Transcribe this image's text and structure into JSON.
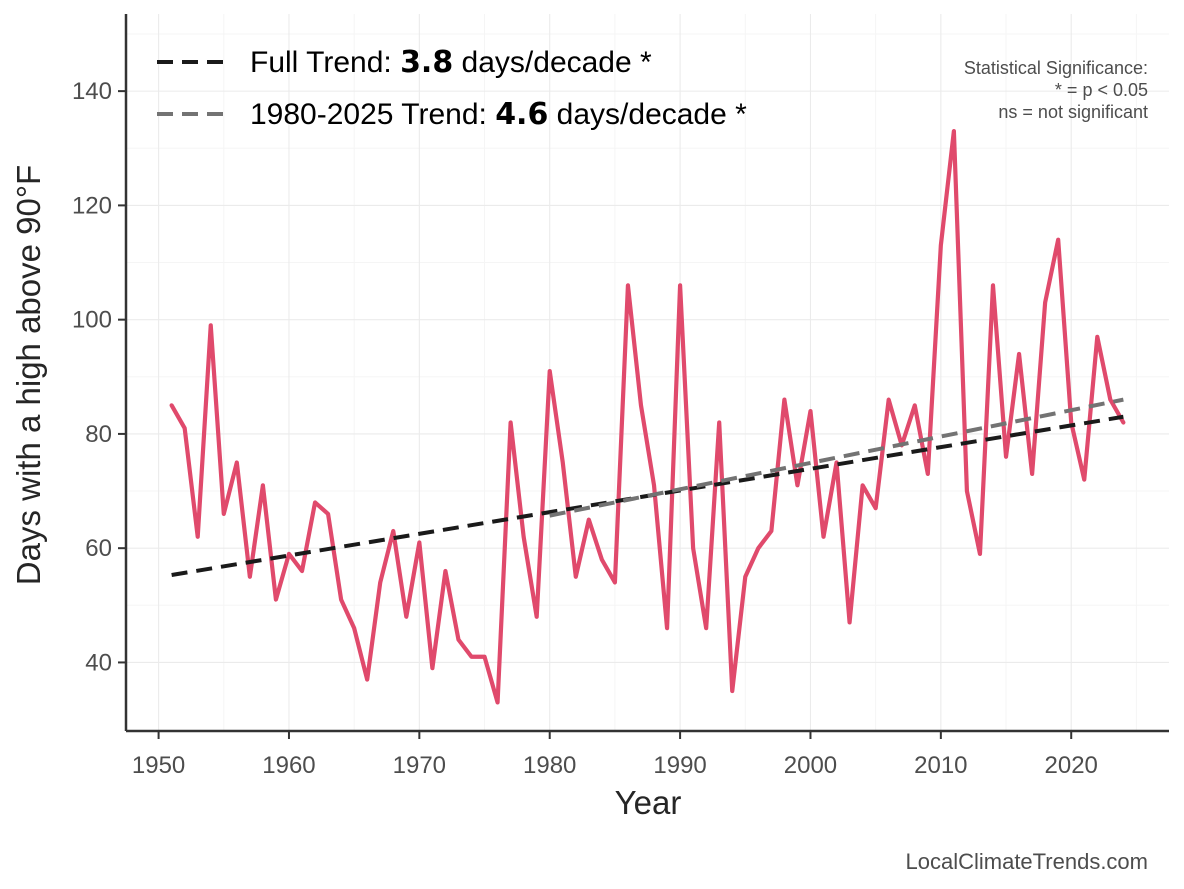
{
  "chart_data": {
    "type": "line",
    "xlabel": "Year",
    "ylabel": "Days with a high above 90°F",
    "xlim": [
      1947.5,
      2027.5
    ],
    "ylim": [
      28,
      153.5
    ],
    "xticks": [
      1950,
      1960,
      1970,
      1980,
      1990,
      2000,
      2010,
      2020
    ],
    "yticks": [
      40,
      60,
      80,
      100,
      120,
      140
    ],
    "grid": true,
    "legend_position": "top-left",
    "series": [
      {
        "name": "Days above 90°F",
        "color": "#e04a6c",
        "x": [
          1951,
          1952,
          1953,
          1954,
          1955,
          1956,
          1957,
          1958,
          1959,
          1960,
          1961,
          1962,
          1963,
          1964,
          1965,
          1966,
          1967,
          1968,
          1969,
          1970,
          1971,
          1972,
          1973,
          1974,
          1975,
          1976,
          1977,
          1978,
          1979,
          1980,
          1981,
          1982,
          1983,
          1984,
          1985,
          1986,
          1987,
          1988,
          1989,
          1990,
          1991,
          1992,
          1993,
          1994,
          1995,
          1996,
          1997,
          1998,
          1999,
          2000,
          2001,
          2002,
          2003,
          2004,
          2005,
          2006,
          2007,
          2008,
          2009,
          2010,
          2011,
          2012,
          2013,
          2014,
          2015,
          2016,
          2017,
          2018,
          2019,
          2020,
          2021,
          2022,
          2023,
          2024
        ],
        "values": [
          85,
          81,
          62,
          99,
          66,
          75,
          55,
          71,
          51,
          59,
          56,
          68,
          66,
          51,
          46,
          37,
          54,
          63,
          48,
          61,
          39,
          56,
          44,
          41,
          41,
          33,
          82,
          62,
          48,
          91,
          75,
          55,
          65,
          58,
          54,
          106,
          85,
          71,
          46,
          106,
          60,
          46,
          82,
          35,
          55,
          60,
          63,
          86,
          71,
          84,
          62,
          75,
          47,
          71,
          67,
          86,
          78,
          85,
          73,
          113,
          133,
          70,
          59,
          106,
          76,
          94,
          73,
          103,
          114,
          82,
          72,
          97,
          86,
          82
        ]
      }
    ],
    "trends": [
      {
        "name": "Full Trend",
        "label_prefix": "Full Trend: ",
        "rate": "3.8",
        "label_suffix": " days/decade *",
        "color": "#1a1a1a",
        "style": "dashed",
        "x": [
          1951,
          2024
        ],
        "values": [
          55.3,
          83.0
        ]
      },
      {
        "name": "1980-2025 Trend",
        "label_prefix": "1980-2025 Trend: ",
        "rate": "4.6",
        "label_suffix": " days/decade *",
        "color": "#737373",
        "style": "dashed",
        "x": [
          1980,
          2024
        ],
        "values": [
          65.7,
          86.0
        ]
      }
    ],
    "annotation": {
      "line1": "Statistical Significance:",
      "line2": "* = p < 0.05",
      "line3": "ns = not significant"
    },
    "credit": "LocalClimateTrends.com"
  }
}
